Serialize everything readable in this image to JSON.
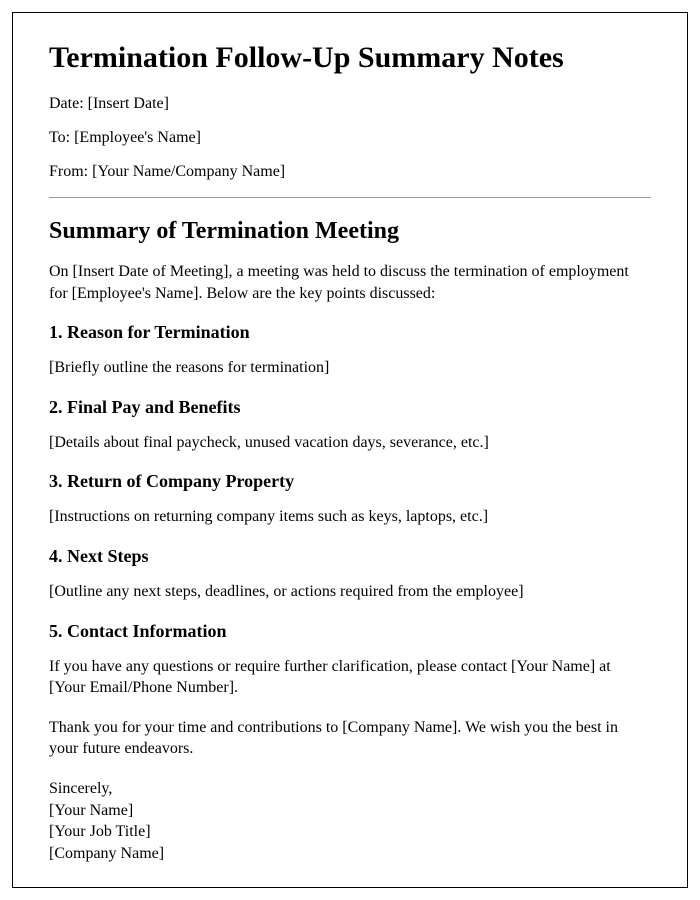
{
  "document": {
    "title": "Termination Follow-Up Summary Notes",
    "meta": {
      "date_label": "Date: [Insert Date]",
      "to_label": "To: [Employee's Name]",
      "from_label": "From: [Your Name/Company Name]"
    },
    "summary_heading": "Summary of Termination Meeting",
    "intro_paragraph": "On [Insert Date of Meeting], a meeting was held to discuss the termination of employment for [Employee's Name]. Below are the key points discussed:",
    "sections": {
      "s1": {
        "heading": "1. Reason for Termination",
        "body": "[Briefly outline the reasons for termination]"
      },
      "s2": {
        "heading": "2. Final Pay and Benefits",
        "body": "[Details about final paycheck, unused vacation days, severance, etc.]"
      },
      "s3": {
        "heading": "3. Return of Company Property",
        "body": "[Instructions on returning company items such as keys, laptops, etc.]"
      },
      "s4": {
        "heading": "4. Next Steps",
        "body": "[Outline any next steps, deadlines, or actions required from the employee]"
      },
      "s5": {
        "heading": "5. Contact Information",
        "body": "If you have any questions or require further clarification, please contact [Your Name] at [Your Email/Phone Number]."
      }
    },
    "closing_paragraph": "Thank you for your time and contributions to [Company Name]. We wish you the best in your future endeavors.",
    "signature": {
      "sincerely": "Sincerely,",
      "name": "[Your Name]",
      "job_title": "[Your Job Title]",
      "company": "[Company Name]"
    }
  },
  "style": {
    "font_family": "Times New Roman, Times, serif",
    "title_fontsize": 30,
    "h2_fontsize": 24,
    "h3_fontsize": 18,
    "body_fontsize": 16,
    "text_color": "#000000",
    "border_color": "#000000",
    "hr_color": "#999999",
    "background_color": "#ffffff"
  }
}
